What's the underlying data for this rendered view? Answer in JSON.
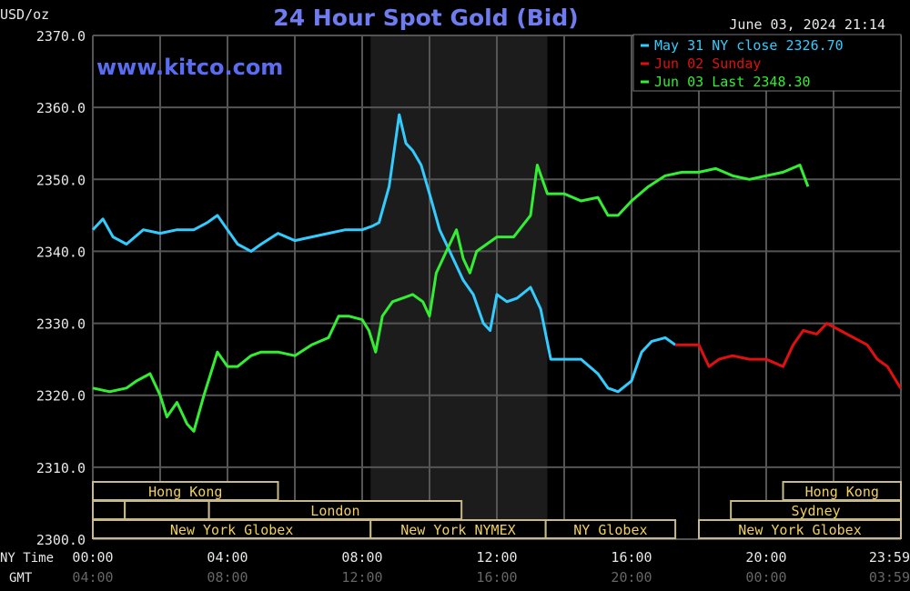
{
  "chart_data": {
    "type": "line",
    "title": "24 Hour Spot Gold (Bid)",
    "watermark": "www.kitco.com",
    "timestamp": "June 03, 2024 21:14",
    "ylabel": "USD/oz",
    "ylim": [
      2300,
      2370
    ],
    "yticks": [
      "2300.0",
      "2310.0",
      "2320.0",
      "2330.0",
      "2340.0",
      "2350.0",
      "2360.0",
      "2370.0"
    ],
    "xlim_hours": [
      0,
      24
    ],
    "x_row_labels": {
      "ny": "NY Time",
      "gmt": "GMT"
    },
    "xticks_ny": [
      "00:00",
      "04:00",
      "08:00",
      "12:00",
      "16:00",
      "20:00",
      "23:59"
    ],
    "xticks_gmt": [
      "04:00",
      "08:00",
      "12:00",
      "16:00",
      "20:00",
      "00:00",
      "03:59"
    ],
    "grid": true,
    "shaded_hours": [
      8.25,
      13.5
    ],
    "legend_position": "top-right",
    "legend": [
      {
        "label": "May 31 NY close 2326.70",
        "color": "#33ccff"
      },
      {
        "label": "Jun 02 Sunday",
        "color": "#e01010"
      },
      {
        "label": "Jun 03 Last 2348.30",
        "color": "#33ee33"
      }
    ],
    "series": [
      {
        "name": "May 31 NY close",
        "color": "#33ccff",
        "x": [
          0,
          0.3,
          0.6,
          1,
          1.5,
          2,
          2.5,
          3,
          3.4,
          3.7,
          4,
          4.3,
          4.7,
          5,
          5.5,
          6,
          6.5,
          7,
          7.5,
          8,
          8.3,
          8.5,
          8.8,
          9.1,
          9.3,
          9.5,
          9.75,
          10,
          10.3,
          10.6,
          11,
          11.3,
          11.6,
          11.8,
          12,
          12.3,
          12.6,
          13,
          13.3,
          13.6,
          14,
          14.5,
          15,
          15.3,
          15.6,
          16,
          16.3,
          16.6,
          17,
          17.3
        ],
        "values": [
          2343,
          2344.5,
          2342,
          2341,
          2343,
          2342.5,
          2343,
          2343,
          2344,
          2345,
          2343,
          2341,
          2340,
          2341,
          2342.5,
          2341.5,
          2342,
          2342.5,
          2343,
          2343,
          2343.5,
          2344,
          2349,
          2359,
          2355,
          2354,
          2352,
          2348,
          2343,
          2340,
          2336,
          2334,
          2330,
          2329,
          2334,
          2333,
          2333.5,
          2335,
          2332,
          2325,
          2325,
          2325,
          2323,
          2321,
          2320.5,
          2322,
          2326,
          2327.5,
          2328,
          2327
        ]
      },
      {
        "name": "Jun 02 Sunday",
        "color": "#e01010",
        "x": [
          17.3,
          18,
          18.3,
          18.6,
          19,
          19.5,
          20,
          20.5,
          20.8,
          21.1,
          21.5,
          21.8,
          22.2,
          22.6,
          23,
          23.3,
          23.6,
          23.99
        ],
        "values": [
          2327,
          2327,
          2324,
          2325,
          2325.5,
          2325,
          2325,
          2324,
          2327,
          2329,
          2328.5,
          2330,
          2329,
          2328,
          2327,
          2325,
          2324,
          2321
        ]
      },
      {
        "name": "Jun 03 Last",
        "color": "#33ee33",
        "x": [
          0,
          0.5,
          1,
          1.3,
          1.7,
          2,
          2.2,
          2.5,
          2.8,
          3,
          3.3,
          3.5,
          3.7,
          4,
          4.3,
          4.7,
          5,
          5.5,
          6,
          6.5,
          7,
          7.3,
          7.6,
          8,
          8.2,
          8.4,
          8.6,
          8.9,
          9.2,
          9.5,
          9.8,
          10,
          10.2,
          10.5,
          10.8,
          11,
          11.2,
          11.4,
          11.7,
          12,
          12.5,
          13,
          13.2,
          13.5,
          14,
          14.5,
          15,
          15.3,
          15.6,
          16,
          16.5,
          17,
          17.5,
          18,
          18.5,
          19,
          19.5,
          20,
          20.5,
          21,
          21.24
        ],
        "values": [
          2321,
          2320.5,
          2321,
          2322,
          2323,
          2320,
          2317,
          2319,
          2316,
          2315,
          2320,
          2323,
          2326,
          2324,
          2324,
          2325.5,
          2326,
          2326,
          2325.5,
          2327,
          2328,
          2331,
          2331,
          2330.5,
          2329,
          2326,
          2331,
          2333,
          2333.5,
          2334,
          2333,
          2331,
          2337,
          2340,
          2343,
          2339,
          2337,
          2340,
          2341,
          2342,
          2342,
          2345,
          2352,
          2348,
          2348,
          2347,
          2347.5,
          2345,
          2345,
          2347,
          2349,
          2350.5,
          2351,
          2351,
          2351.5,
          2350.5,
          2350,
          2350.5,
          2351,
          2352,
          2349
        ]
      }
    ],
    "sessions": [
      {
        "label": "Hong Kong",
        "row": 0,
        "start": 0,
        "end": 5.5
      },
      {
        "label": "Hong Kong",
        "row": 0,
        "start": 20.5,
        "end": 24
      },
      {
        "label": "",
        "row": 1,
        "start": 0,
        "end": 0.95
      },
      {
        "label": "",
        "row": 1,
        "start": 0.95,
        "end": 3.45
      },
      {
        "label": "London",
        "row": 1,
        "start": 3.45,
        "end": 10.95
      },
      {
        "label": "Sydney",
        "row": 1,
        "start": 18.95,
        "end": 24
      },
      {
        "label": "New York Globex",
        "row": 2,
        "start": 0,
        "end": 8.25
      },
      {
        "label": "New York NYMEX",
        "row": 2,
        "start": 8.25,
        "end": 13.45
      },
      {
        "label": "NY Globex",
        "row": 2,
        "start": 13.45,
        "end": 17.3
      },
      {
        "label": "New York Globex",
        "row": 2,
        "start": 18,
        "end": 24
      }
    ]
  }
}
